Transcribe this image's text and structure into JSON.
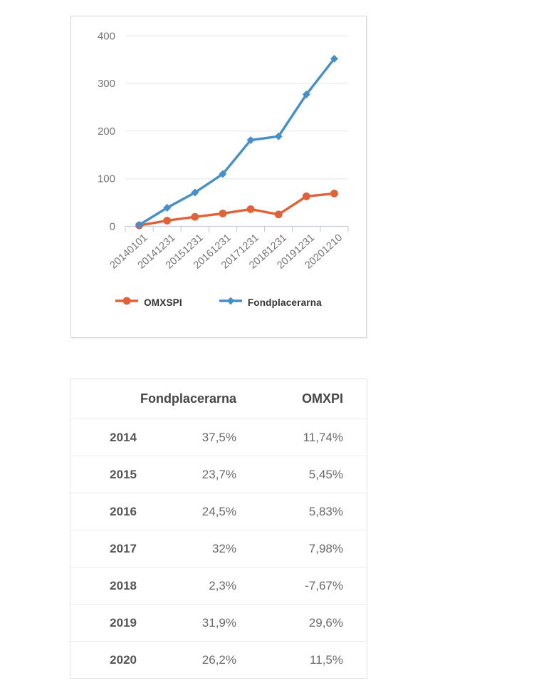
{
  "page": {
    "background": "#ffffff"
  },
  "chart_data": {
    "type": "line",
    "x": [
      "20140101",
      "20141231",
      "20151231",
      "20161231",
      "20171231",
      "20181231",
      "20191231",
      "20201210"
    ],
    "series": [
      {
        "name": "OMXSPI",
        "color": "#E06236",
        "marker": "circle",
        "values": [
          2,
          12,
          20,
          27,
          36,
          25,
          63,
          69
        ]
      },
      {
        "name": "Fondplacerarna",
        "color": "#4490CB",
        "marker": "diamond",
        "values": [
          3,
          39,
          71,
          110,
          181,
          189,
          277,
          352
        ]
      }
    ],
    "ylim": [
      0,
      400
    ],
    "yticks": [
      0,
      100,
      200,
      300,
      400
    ],
    "grid": true,
    "legend_position": "bottom",
    "axis_color": "#c6cfe6",
    "gridline_color": "#e6e6e6",
    "tick_label_color": "#757575"
  },
  "table": {
    "headers": [
      "",
      "Fondplacerarna",
      "OMXPI"
    ],
    "rows": [
      {
        "year": "2014",
        "fondplacerarna": "37,5%",
        "omxpi": "11,74%"
      },
      {
        "year": "2015",
        "fondplacerarna": "23,7%",
        "omxpi": "5,45%"
      },
      {
        "year": "2016",
        "fondplacerarna": "24,5%",
        "omxpi": "5,83%"
      },
      {
        "year": "2017",
        "fondplacerarna": "32%",
        "omxpi": "7,98%"
      },
      {
        "year": "2018",
        "fondplacerarna": "2,3%",
        "omxpi": "-7,67%"
      },
      {
        "year": "2019",
        "fondplacerarna": "31,9%",
        "omxpi": "29,6%"
      },
      {
        "year": "2020",
        "fondplacerarna": "26,2%",
        "omxpi": "11,5%"
      }
    ]
  }
}
